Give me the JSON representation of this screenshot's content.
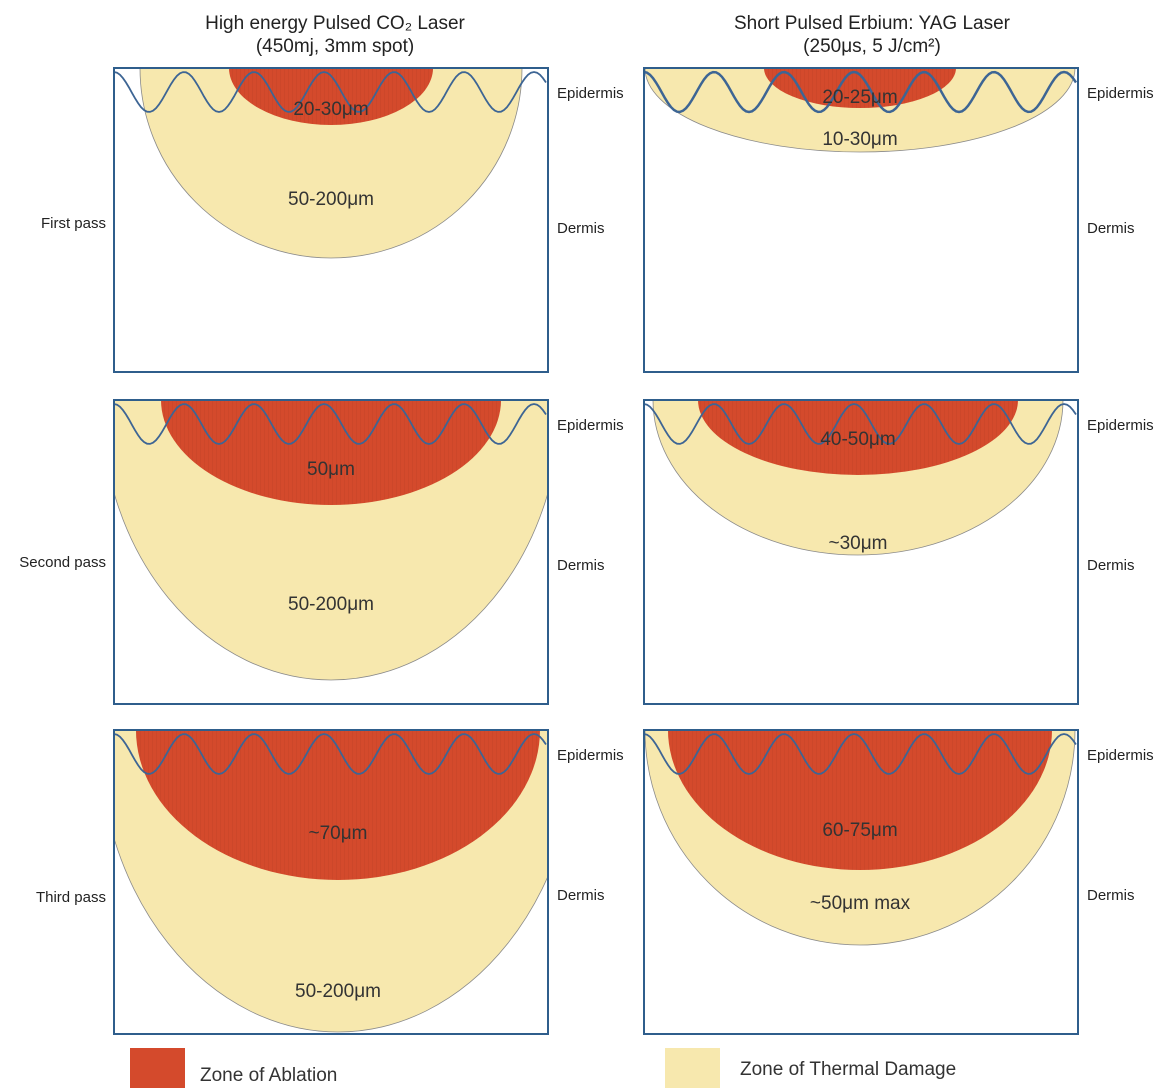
{
  "columns": [
    {
      "title": "High energy Pulsed CO₂ Laser",
      "subtitle": "(450mj, 3mm spot)",
      "panels": [
        {
          "ablation": "20-30μm",
          "thermal": "50-200μm"
        },
        {
          "ablation": "50μm",
          "thermal": "50-200μm"
        },
        {
          "ablation": "~70μm",
          "thermal": "50-200μm"
        }
      ]
    },
    {
      "title": "Short Pulsed Erbium: YAG Laser",
      "subtitle": "(250μs, 5 J/cm²)",
      "panels": [
        {
          "ablation": "20-25μm",
          "thermal": "10-30μm"
        },
        {
          "ablation": "40-50μm",
          "thermal": "~30μm"
        },
        {
          "ablation": "60-75μm",
          "thermal": "~50μm max"
        }
      ]
    }
  ],
  "rows": [
    "First pass",
    "Second pass",
    "Third pass"
  ],
  "layers": {
    "top": "Epidermis",
    "bottom": "Dermis"
  },
  "legend": [
    {
      "label": "Zone of Ablation",
      "color": "#d44a2c"
    },
    {
      "label": "Zone of Thermal Damage",
      "color": "#f7e8ae"
    }
  ]
}
